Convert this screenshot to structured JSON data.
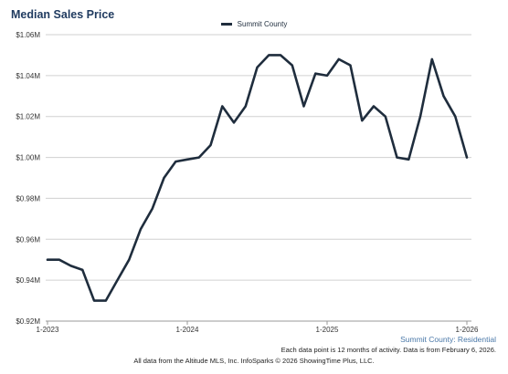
{
  "chart_data": {
    "type": "line",
    "title": "Median Sales Price",
    "subtitle": "Summit County: Residential",
    "legend": {
      "entries": [
        "Summit County"
      ],
      "placement": "top-center"
    },
    "series": [
      {
        "name": "Summit County",
        "color": "#1f2d3d",
        "values": [
          0.95,
          0.95,
          0.947,
          0.945,
          0.93,
          0.93,
          0.94,
          0.95,
          0.965,
          0.975,
          0.99,
          0.998,
          0.999,
          1.0,
          1.006,
          1.025,
          1.017,
          1.025,
          1.044,
          1.05,
          1.05,
          1.045,
          1.025,
          1.041,
          1.04,
          1.048,
          1.045,
          1.018,
          1.025,
          1.02,
          1.0,
          0.999,
          1.02,
          1.048,
          1.03,
          1.02,
          1.0
        ]
      }
    ],
    "x_categories": [
      "1-2023",
      "2-2023",
      "3-2023",
      "4-2023",
      "5-2023",
      "6-2023",
      "7-2023",
      "8-2023",
      "9-2023",
      "10-2023",
      "11-2023",
      "12-2023",
      "1-2024",
      "2-2024",
      "3-2024",
      "4-2024",
      "5-2024",
      "6-2024",
      "7-2024",
      "8-2024",
      "9-2024",
      "10-2024",
      "11-2024",
      "12-2024",
      "1-2025",
      "2-2025",
      "3-2025",
      "4-2025",
      "5-2025",
      "6-2025",
      "7-2025",
      "8-2025",
      "9-2025",
      "10-2025",
      "11-2025",
      "12-2025",
      "1-2026"
    ],
    "x_tick_labels": [
      "1-2023",
      "1-2024",
      "1-2025",
      "1-2026"
    ],
    "y_tick_labels": [
      "$0.92M",
      "$0.94M",
      "$0.96M",
      "$0.98M",
      "$1.00M",
      "$1.02M",
      "$1.04M",
      "$1.06M"
    ],
    "y_unit": "$M",
    "ylim": [
      0.92,
      1.06
    ],
    "grid": true
  },
  "notes": {
    "activity": "Each data point is 12 months of activity. Data is from February 6, 2026.",
    "footer": "All data from the Altitude MLS, Inc. InfoSparks © 2026 ShowingTime Plus, LLC."
  }
}
